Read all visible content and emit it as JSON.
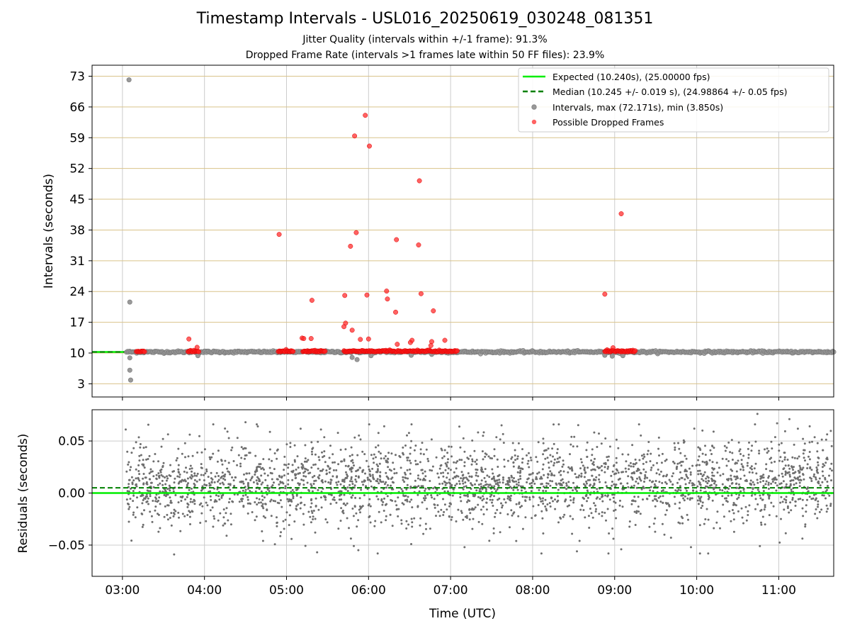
{
  "colors": {
    "expected": "#00ee00",
    "median": "#008000",
    "intervals": "#999999",
    "dropped": "#ff2020",
    "residuals": "#6e6e6e",
    "hgrid_top": "#d9c38a",
    "vgrid": "#cccccc"
  },
  "chart_data": [
    {
      "type": "scatter",
      "title": "Timestamp Intervals - USL016_20250619_030248_081351",
      "subtitle_lines": [
        "Jitter Quality (intervals within +/-1 frame): 91.3%",
        "Dropped Frame Rate (intervals >1 frames late within 50 FF files): 23.9%"
      ],
      "ylabel": "Intervals (seconds)",
      "xlabel": "",
      "xlim_hours": [
        2.63,
        11.67
      ],
      "ylim": [
        0.0,
        75.5
      ],
      "yticks": [
        3,
        10,
        17,
        24,
        31,
        38,
        45,
        52,
        59,
        66,
        73
      ],
      "ytick_labels": [
        "3",
        "10",
        "17",
        "24",
        "31",
        "38",
        "45",
        "52",
        "59",
        "66",
        "73"
      ],
      "grid": true,
      "legend_position": "top-right",
      "legend": [
        "Expected (10.240s), (25.00000 fps)",
        "Median (10.245 +/- 0.019 s), (24.98864 +/- 0.05 fps)",
        "Intervals, max (72.171s), min (3.850s)",
        "Possible Dropped Frames"
      ],
      "expected_y": 10.24,
      "median_y": 10.245,
      "series": [
        {
          "name": "Intervals, max (72.171s), min (3.850s)",
          "baseline_y": 10.24,
          "baseline_x_range": [
            3.05,
            11.67
          ],
          "outliers": [
            [
              3.08,
              72.17
            ],
            [
              3.09,
              21.6
            ],
            [
              3.09,
              8.9
            ],
            [
              3.09,
              6.1
            ],
            [
              3.1,
              3.85
            ],
            [
              3.92,
              9.4
            ],
            [
              5.8,
              9.0
            ],
            [
              5.86,
              8.5
            ],
            [
              6.03,
              9.4
            ],
            [
              6.52,
              9.5
            ],
            [
              6.77,
              9.7
            ],
            [
              8.88,
              9.5
            ],
            [
              8.97,
              9.3
            ],
            [
              9.1,
              9.4
            ]
          ]
        },
        {
          "name": "Possible Dropped Frames",
          "clusters": [
            [
              3.17,
              3.27
            ],
            [
              3.8,
              3.93
            ],
            [
              4.9,
              5.08
            ],
            [
              5.2,
              5.47
            ],
            [
              5.7,
              7.08
            ],
            [
              8.88,
              9.25
            ]
          ],
          "points": [
            [
              3.81,
              13.2
            ],
            [
              3.91,
              11.3
            ],
            [
              4.91,
              37.0
            ],
            [
              5.19,
              13.4
            ],
            [
              5.21,
              13.3
            ],
            [
              5.3,
              13.3
            ],
            [
              5.31,
              22.0
            ],
            [
              5.7,
              16.0
            ],
            [
              5.71,
              23.1
            ],
            [
              5.72,
              16.8
            ],
            [
              5.78,
              34.3
            ],
            [
              5.8,
              15.2
            ],
            [
              5.83,
              59.4
            ],
            [
              5.85,
              37.4
            ],
            [
              5.9,
              13.1
            ],
            [
              5.96,
              64.1
            ],
            [
              5.98,
              23.2
            ],
            [
              6.0,
              13.2
            ],
            [
              6.01,
              57.1
            ],
            [
              6.22,
              24.1
            ],
            [
              6.23,
              22.3
            ],
            [
              6.33,
              19.3
            ],
            [
              6.34,
              35.8
            ],
            [
              6.35,
              12.0
            ],
            [
              6.51,
              12.4
            ],
            [
              6.53,
              12.9
            ],
            [
              6.61,
              34.6
            ],
            [
              6.62,
              49.2
            ],
            [
              6.64,
              23.5
            ],
            [
              6.76,
              11.7
            ],
            [
              6.77,
              12.6
            ],
            [
              6.79,
              19.6
            ],
            [
              6.93,
              12.9
            ],
            [
              8.88,
              23.4
            ],
            [
              8.98,
              11.2
            ],
            [
              9.08,
              41.7
            ]
          ]
        }
      ]
    },
    {
      "type": "scatter",
      "title": "",
      "xlabel": "Time (UTC)",
      "ylabel": "Residuals (seconds)",
      "xlim_hours": [
        2.63,
        11.67
      ],
      "ylim": [
        -0.08,
        0.08
      ],
      "yticks": [
        -0.05,
        0.0,
        0.05
      ],
      "ytick_labels": [
        "−0.05",
        "0.00",
        "0.05"
      ],
      "xticks_hours": [
        3,
        4,
        5,
        6,
        7,
        8,
        9,
        10,
        11
      ],
      "xtick_labels": [
        "03:00",
        "04:00",
        "05:00",
        "06:00",
        "07:00",
        "08:00",
        "09:00",
        "10:00",
        "11:00"
      ],
      "grid": true,
      "expected_y": 0.0,
      "median_y": 0.005,
      "series": [
        {
          "name": "Residuals",
          "x_range": [
            3.05,
            11.67
          ],
          "count": 2800,
          "mean_start": 0.006,
          "mean_end": 0.012,
          "std": 0.02,
          "sample_points": [
            [
              3.04,
              0.061
            ],
            [
              3.63,
              -0.059
            ],
            [
              4.25,
              0.062
            ],
            [
              4.28,
              0.059
            ],
            [
              4.5,
              0.068
            ],
            [
              4.65,
              0.064
            ],
            [
              5.42,
              0.061
            ],
            [
              6.52,
              -0.049
            ],
            [
              7.17,
              -0.052
            ],
            [
              7.8,
              -0.046
            ],
            [
              8.54,
              -0.056
            ],
            [
              9.08,
              -0.054
            ],
            [
              9.93,
              -0.052
            ],
            [
              10.04,
              -0.058
            ],
            [
              10.07,
              0.06
            ],
            [
              10.14,
              -0.058
            ],
            [
              10.74,
              0.076
            ],
            [
              10.77,
              -0.051
            ],
            [
              10.98,
              0.067
            ],
            [
              11.13,
              0.071
            ]
          ]
        }
      ]
    }
  ]
}
